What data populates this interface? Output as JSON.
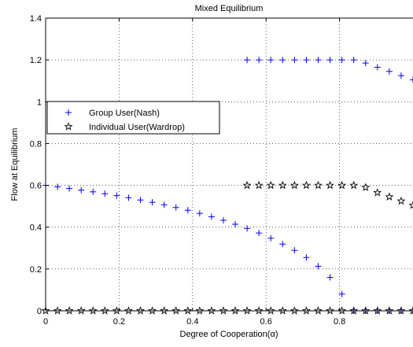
{
  "chart_data": {
    "type": "scatter",
    "title": "Mixed Equilibrium",
    "xlabel": "Degree of Cooperation(α)",
    "ylabel": "Flow at Equilibrium",
    "xlim": [
      0,
      1
    ],
    "ylim": [
      0,
      1.4
    ],
    "x_ticks": [
      0,
      0.2,
      0.4,
      0.6,
      0.8
    ],
    "x_tick_labels": [
      "0",
      "0.2",
      "0.4",
      "0.6",
      "0.8"
    ],
    "y_ticks": [
      0,
      0.2,
      0.4,
      0.6,
      0.8,
      1,
      1.2,
      1.4
    ],
    "y_tick_labels": [
      "0",
      "0.2",
      "0.4",
      "0.6",
      "0.8",
      "1",
      "1.2",
      "1.4"
    ],
    "grid": true,
    "legend_position": "left",
    "series": [
      {
        "name": "Group User(Nash)",
        "marker": "plus",
        "color": "#0000ff",
        "segments": [
          {
            "x": [
              0,
              0.0323,
              0.0645,
              0.0968,
              0.129,
              0.1613,
              0.1935,
              0.2258,
              0.2581,
              0.2903,
              0.3226,
              0.3548,
              0.3871,
              0.4194,
              0.4516,
              0.4839,
              0.5161,
              0.5484,
              0.5806,
              0.6129,
              0.6452,
              0.6774,
              0.7097,
              0.7419,
              0.7742,
              0.8065
            ],
            "y": [
              0.6,
              0.593,
              0.585,
              0.577,
              0.569,
              0.56,
              0.551,
              0.541,
              0.53,
              0.519,
              0.507,
              0.494,
              0.481,
              0.466,
              0.45,
              0.433,
              0.414,
              0.394,
              0.372,
              0.347,
              0.319,
              0.289,
              0.255,
              0.213,
              0.16,
              0.08
            ]
          },
          {
            "x": [
              0.5484,
              0.5806,
              0.6129,
              0.6452,
              0.6774,
              0.7097,
              0.7419,
              0.7742,
              0.8065,
              0.8387,
              0.871,
              0.9032,
              0.9355,
              0.9677,
              1.0
            ],
            "y": [
              1.2,
              1.2,
              1.2,
              1.2,
              1.2,
              1.2,
              1.2,
              1.2,
              1.2,
              1.2,
              1.185,
              1.165,
              1.145,
              1.125,
              1.105
            ]
          },
          {
            "x": [
              0.8387,
              0.871,
              0.9032,
              0.9355,
              0.9677,
              1.0
            ],
            "y": [
              0,
              0,
              0,
              0,
              0,
              0
            ]
          }
        ]
      },
      {
        "name": "Individual User(Wardrop)",
        "marker": "star",
        "color": "#000000",
        "segments": [
          {
            "x": [
              0.5484,
              0.5806,
              0.6129,
              0.6452,
              0.6774,
              0.7097,
              0.7419,
              0.7742,
              0.8065,
              0.8387,
              0.871,
              0.9032,
              0.9355,
              0.9677,
              1.0
            ],
            "y": [
              0.6,
              0.6,
              0.6,
              0.6,
              0.6,
              0.6,
              0.6,
              0.6,
              0.6,
              0.6,
              0.59,
              0.565,
              0.545,
              0.525,
              0.505
            ]
          },
          {
            "x": [
              0,
              0.0323,
              0.0645,
              0.0968,
              0.129,
              0.1613,
              0.1935,
              0.2258,
              0.2581,
              0.2903,
              0.3226,
              0.3548,
              0.3871,
              0.4194,
              0.4516,
              0.4839,
              0.5161,
              0.5484,
              0.5806,
              0.6129,
              0.6452,
              0.6774,
              0.7097,
              0.7419,
              0.7742,
              0.8065,
              0.8387,
              0.871,
              0.9032,
              0.9355,
              0.9677,
              1.0
            ],
            "y": [
              0,
              0,
              0,
              0,
              0,
              0,
              0,
              0,
              0,
              0,
              0,
              0,
              0,
              0,
              0,
              0,
              0,
              0,
              0,
              0,
              0,
              0,
              0,
              0,
              0,
              0,
              0,
              0,
              0,
              0,
              0,
              0
            ]
          }
        ]
      }
    ]
  }
}
